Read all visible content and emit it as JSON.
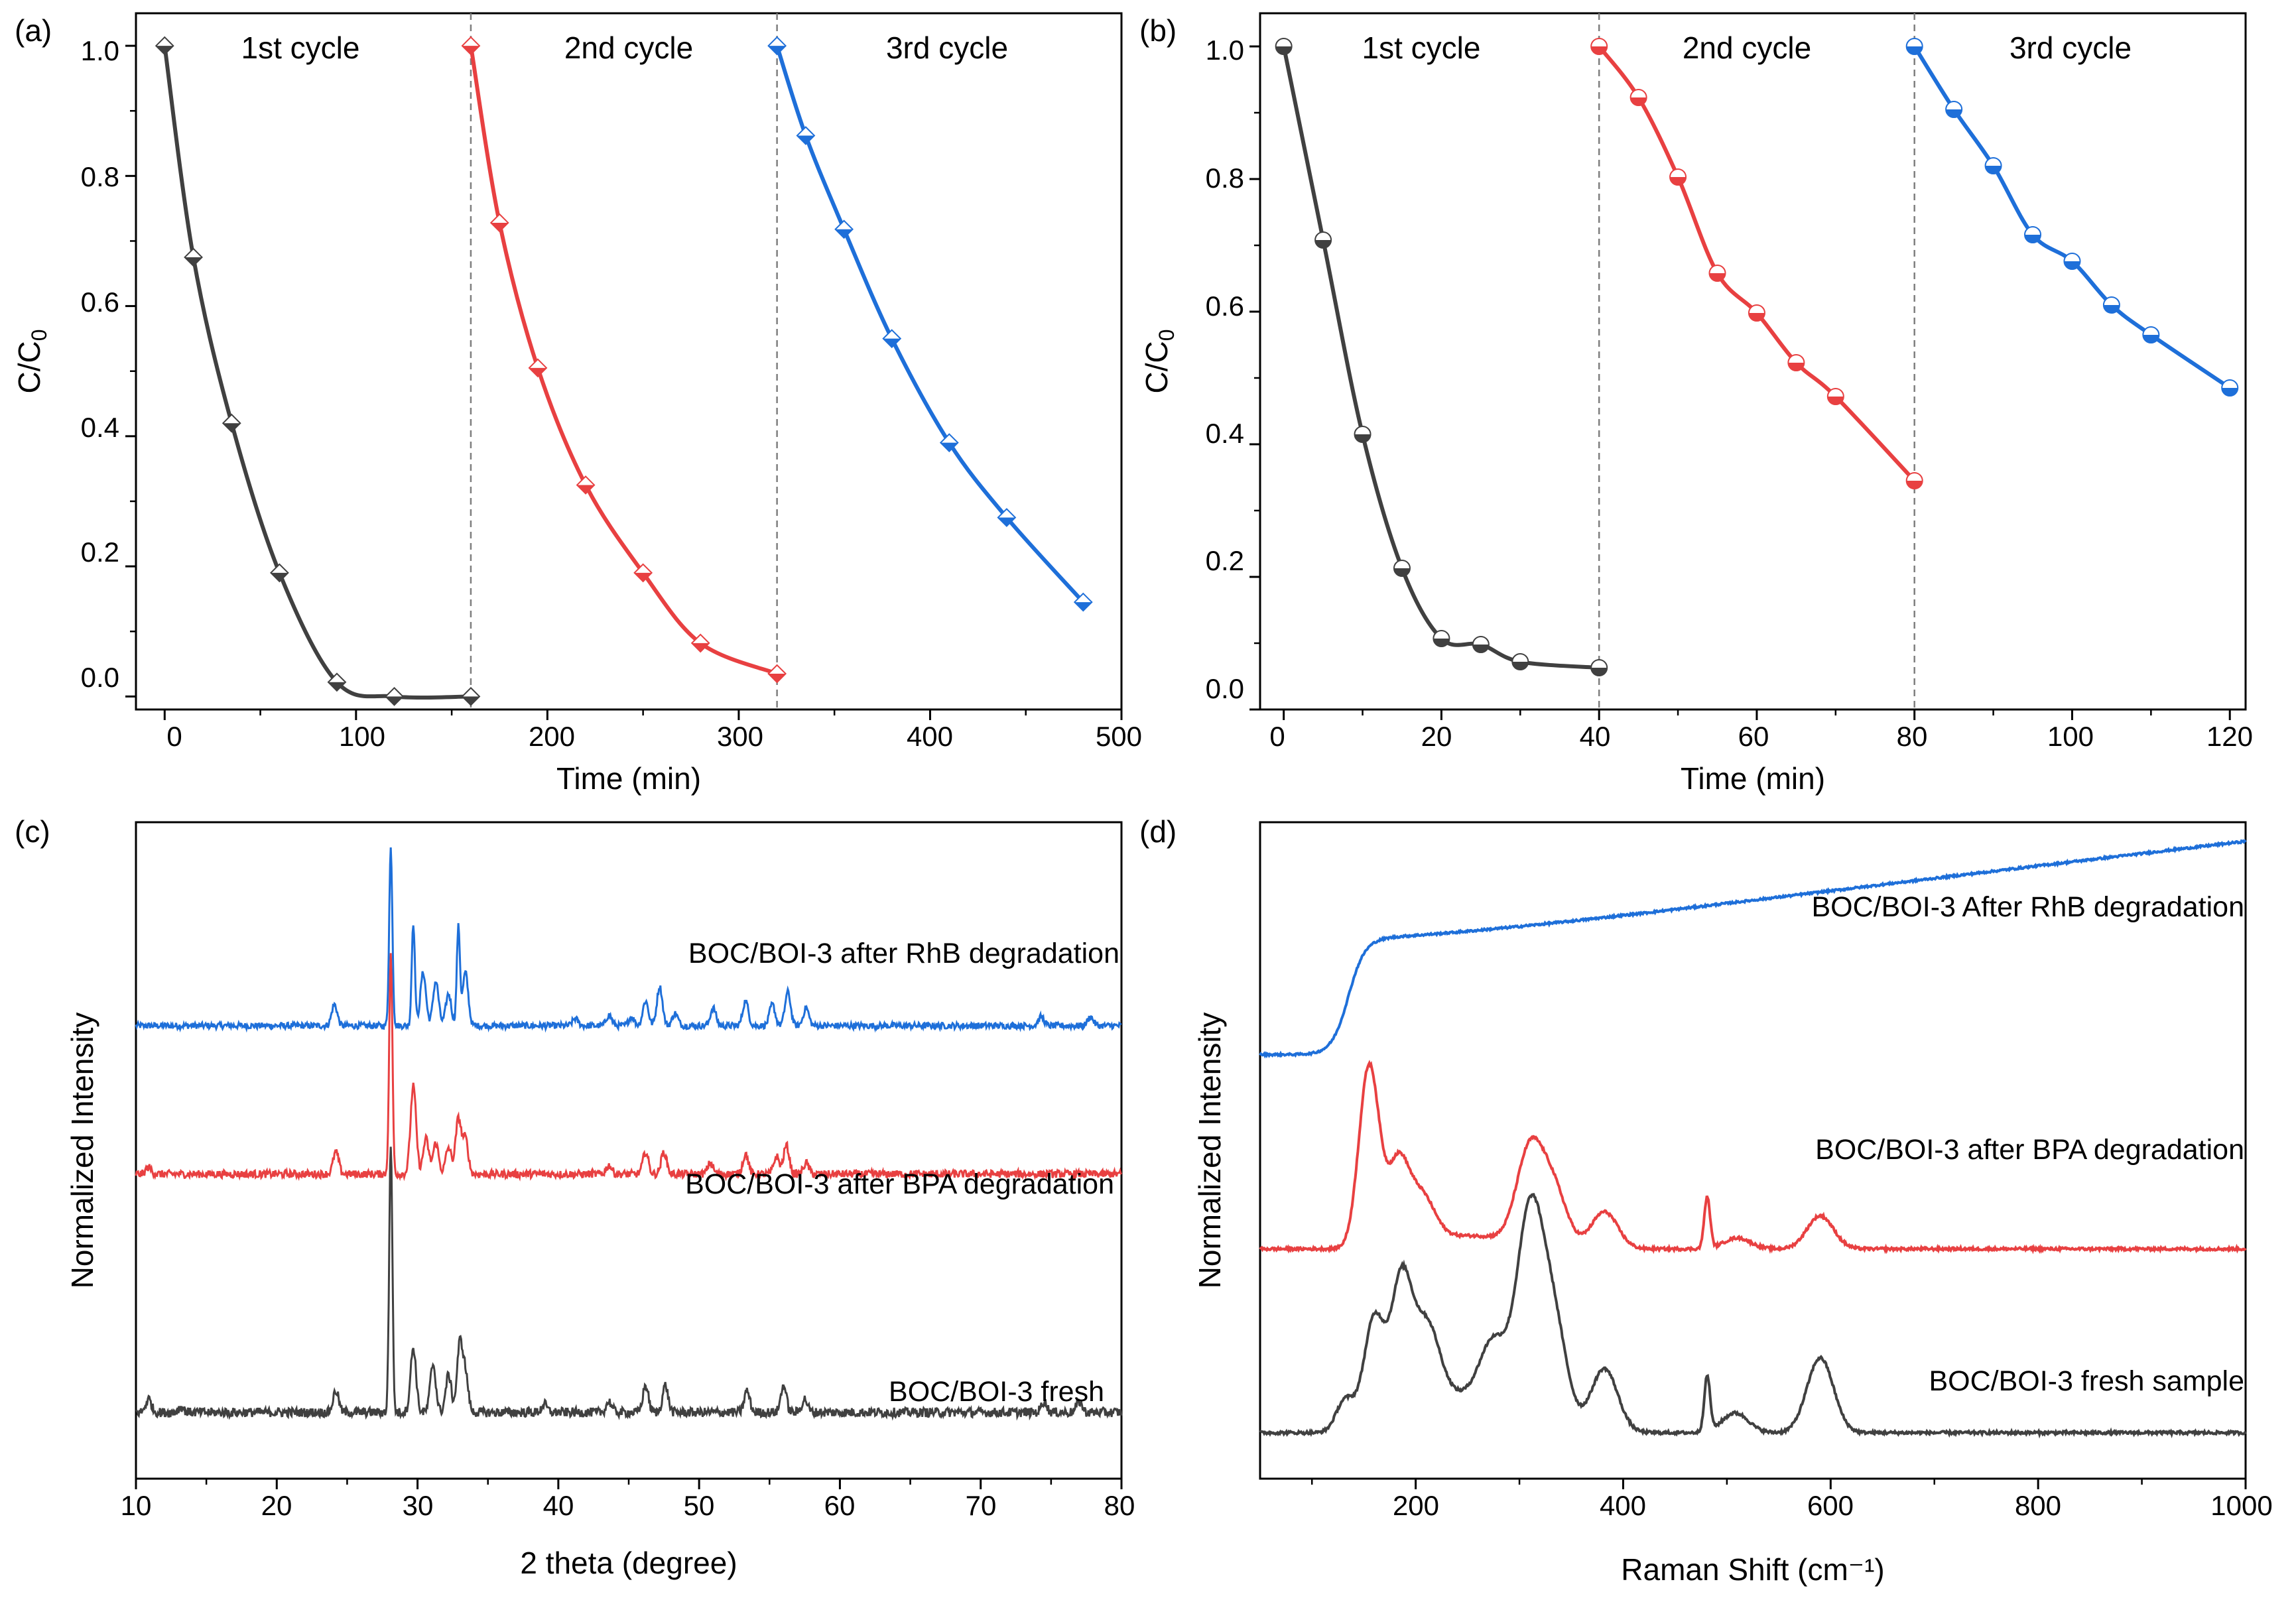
{
  "colors": {
    "cycle1": "#404040",
    "cycle2": "#e84041",
    "cycle3": "#1e6fd9",
    "dash": "#7f7f7f"
  },
  "chart_data": [
    {
      "panel": "(a)",
      "type": "line",
      "xlabel": "Time (min)",
      "ylabel": "C/C0",
      "ylabel_main": "C/C",
      "ylabel_sub": "0",
      "xlim": [
        -15,
        500
      ],
      "ylim": [
        -0.02,
        1.05
      ],
      "xticks": [
        0,
        100,
        200,
        300,
        400,
        500
      ],
      "yticks": [
        0.0,
        0.2,
        0.4,
        0.6,
        0.8,
        1.0
      ],
      "xtick_labels": [
        "0",
        "100",
        "200",
        "300",
        "400",
        "500"
      ],
      "ytick_labels": [
        "0.0",
        "0.2",
        "0.4",
        "0.6",
        "0.8",
        "1.0"
      ],
      "cycle_dividers": [
        160,
        320
      ],
      "annotations": [
        {
          "text": "1st cycle",
          "x": 80,
          "y": 1.0
        },
        {
          "text": "2nd cycle",
          "x": 240,
          "y": 1.0
        },
        {
          "text": "3rd cycle",
          "x": 400,
          "y": 1.0
        }
      ],
      "marker": "diamond",
      "series": [
        {
          "name": "1st cycle",
          "x": [
            0,
            15,
            35,
            60,
            90,
            120,
            160
          ],
          "y": [
            1.0,
            0.675,
            0.42,
            0.19,
            0.022,
            0.0,
            0.0
          ]
        },
        {
          "name": "2nd cycle",
          "x": [
            160,
            175,
            195,
            220,
            250,
            280,
            320
          ],
          "y": [
            1.0,
            0.728,
            0.505,
            0.325,
            0.19,
            0.082,
            0.035
          ]
        },
        {
          "name": "3rd cycle",
          "x": [
            320,
            335,
            355,
            380,
            410,
            440,
            480
          ],
          "y": [
            1.0,
            0.862,
            0.718,
            0.55,
            0.39,
            0.275,
            0.145
          ]
        }
      ]
    },
    {
      "panel": "(b)",
      "type": "line",
      "xlabel": "Time (min)",
      "ylabel": "C/C0",
      "ylabel_main": "C/C",
      "ylabel_sub": "0",
      "xlim": [
        -3,
        122
      ],
      "ylim": [
        0.0,
        1.05
      ],
      "xticks": [
        0,
        20,
        40,
        60,
        80,
        100,
        120
      ],
      "yticks": [
        0.0,
        0.2,
        0.4,
        0.6,
        0.8,
        1.0
      ],
      "xtick_labels": [
        "0",
        "20",
        "40",
        "60",
        "80",
        "100",
        "120"
      ],
      "ytick_labels": [
        "0.0",
        "0.2",
        "0.4",
        "0.6",
        "0.8",
        "1.0"
      ],
      "cycle_dividers": [
        40,
        80
      ],
      "annotations": [
        {
          "text": "1st cycle",
          "x": 20,
          "y": 1.0
        },
        {
          "text": "2nd cycle",
          "x": 60,
          "y": 1.0
        },
        {
          "text": "3rd cycle",
          "x": 100,
          "y": 1.0
        }
      ],
      "marker": "circle",
      "series": [
        {
          "name": "1st cycle",
          "x": [
            0,
            5,
            10,
            15,
            20,
            25,
            30,
            40
          ],
          "y": [
            1.0,
            0.708,
            0.415,
            0.213,
            0.107,
            0.098,
            0.072,
            0.063
          ]
        },
        {
          "name": "2nd cycle",
          "x": [
            40,
            45,
            50,
            55,
            60,
            65,
            70,
            80
          ],
          "y": [
            1.0,
            0.923,
            0.803,
            0.658,
            0.598,
            0.523,
            0.472,
            0.345
          ]
        },
        {
          "name": "3rd cycle",
          "x": [
            80,
            85,
            90,
            95,
            100,
            105,
            110,
            120
          ],
          "y": [
            1.0,
            0.905,
            0.82,
            0.716,
            0.676,
            0.61,
            0.565,
            0.485
          ]
        }
      ]
    },
    {
      "panel": "(c)",
      "type": "line",
      "xlabel": "2 theta (degree)",
      "ylabel": "Normalized Intensity",
      "xlim": [
        10,
        80
      ],
      "ylim": [
        0,
        1
      ],
      "xticks": [
        10,
        20,
        30,
        40,
        50,
        60,
        70,
        80
      ],
      "xtick_labels": [
        "10",
        "20",
        "30",
        "40",
        "50",
        "60",
        "70",
        "80"
      ],
      "series": [
        {
          "name": "BOC/BOI-3 after RhB degradation",
          "color": "#1e6fd9",
          "baseline": 0.69,
          "scale": 0.27,
          "peaks": [
            [
              24.1,
              0.12
            ],
            [
              28.1,
              1.0
            ],
            [
              29.7,
              0.58
            ],
            [
              30.4,
              0.3
            ],
            [
              31.3,
              0.25
            ],
            [
              32.2,
              0.18
            ],
            [
              32.9,
              0.55
            ],
            [
              33.4,
              0.3
            ],
            [
              41.2,
              0.04
            ],
            [
              43.6,
              0.06
            ],
            [
              45.2,
              0.05
            ],
            [
              46.2,
              0.14
            ],
            [
              47.2,
              0.22
            ],
            [
              48.3,
              0.07
            ],
            [
              51.0,
              0.1
            ],
            [
              53.3,
              0.14
            ],
            [
              55.2,
              0.12
            ],
            [
              56.3,
              0.19
            ],
            [
              57.6,
              0.1
            ],
            [
              74.3,
              0.05
            ],
            [
              77.8,
              0.05
            ]
          ]
        },
        {
          "name": "BOC/BOI-3 after BPA degradation",
          "color": "#e84041",
          "baseline": 0.464,
          "scale": 0.335,
          "peaks": [
            [
              10.9,
              0.03
            ],
            [
              24.2,
              0.1
            ],
            [
              28.1,
              1.0
            ],
            [
              29.7,
              0.4
            ],
            [
              30.6,
              0.16
            ],
            [
              31.3,
              0.14
            ],
            [
              32.2,
              0.12
            ],
            [
              32.9,
              0.25
            ],
            [
              33.4,
              0.16
            ],
            [
              43.6,
              0.04
            ],
            [
              46.2,
              0.1
            ],
            [
              47.5,
              0.1
            ],
            [
              50.8,
              0.05
            ],
            [
              53.3,
              0.09
            ],
            [
              55.5,
              0.08
            ],
            [
              56.2,
              0.13
            ],
            [
              57.6,
              0.05
            ]
          ]
        },
        {
          "name": "BOC/BOI-3 fresh",
          "color": "#404040",
          "baseline": 0.101,
          "scale": 0.41,
          "peaks": [
            [
              10.9,
              0.05
            ],
            [
              13.2,
              0.02
            ],
            [
              24.2,
              0.08
            ],
            [
              28.1,
              1.0
            ],
            [
              29.7,
              0.24
            ],
            [
              31.1,
              0.18
            ],
            [
              32.2,
              0.14
            ],
            [
              33.0,
              0.25
            ],
            [
              33.4,
              0.14
            ],
            [
              39.0,
              0.03
            ],
            [
              43.6,
              0.04
            ],
            [
              46.2,
              0.1
            ],
            [
              47.6,
              0.1
            ],
            [
              53.4,
              0.08
            ],
            [
              56.0,
              0.1
            ],
            [
              57.5,
              0.05
            ],
            [
              74.5,
              0.04
            ],
            [
              77.0,
              0.04
            ]
          ]
        }
      ]
    },
    {
      "panel": "(d)",
      "type": "line",
      "xlabel": "Raman Shift (cm⁻¹)",
      "ylabel": "Normalized Intensity",
      "xlim": [
        50,
        1000
      ],
      "ylim": [
        0,
        1
      ],
      "xticks": [
        200,
        400,
        600,
        800,
        1000
      ],
      "xtick_labels": [
        "200",
        "400",
        "600",
        "800",
        "1000"
      ],
      "series": [
        {
          "name": "BOC/BOI-3 After RhB degradation",
          "color": "#1e6fd9",
          "kind": "fluorescence",
          "baseline": 0.646,
          "step_center": 135,
          "step_height": 0.176,
          "slope_end": 0.974
        },
        {
          "name": "BOC/BOI-3 after BPA degradation",
          "color": "#e84041",
          "baseline": 0.35,
          "scale": 0.28,
          "peaks": [
            [
              155,
              1.0
            ],
            [
              183,
              0.42
            ],
            [
              205,
              0.25
            ],
            [
              310,
              0.5
            ],
            [
              333,
              0.3
            ],
            [
              382,
              0.2
            ],
            [
              481,
              0.28
            ],
            [
              510,
              0.06
            ],
            [
              590,
              0.18
            ]
          ]
        },
        {
          "name": "BOC/BOI-3 fresh sample",
          "color": "#404040",
          "baseline": 0.07,
          "scale": 0.3,
          "peaks": [
            [
              130,
              0.2
            ],
            [
              160,
              0.55
            ],
            [
              186,
              0.67
            ],
            [
              210,
              0.42
            ],
            [
              275,
              0.3
            ],
            [
              310,
              1.0
            ],
            [
              333,
              0.5
            ],
            [
              382,
              0.32
            ],
            [
              481,
              0.28
            ],
            [
              508,
              0.1
            ],
            [
              590,
              0.38
            ]
          ]
        }
      ]
    }
  ],
  "labels": {
    "a": {
      "panel": "(a)",
      "xlabel": "Time (min)",
      "ylabel_main": "C/C",
      "ylabel_sub": "0",
      "ann1": "1st cycle",
      "ann2": "2nd cycle",
      "ann3": "3rd cycle",
      "xt": [
        "0",
        "100",
        "200",
        "300",
        "400",
        "500"
      ],
      "yt": [
        "0.0",
        "0.2",
        "0.4",
        "0.6",
        "0.8",
        "1.0"
      ]
    },
    "b": {
      "panel": "(b)",
      "xlabel": "Time (min)",
      "ylabel_main": "C/C",
      "ylabel_sub": "0",
      "ann1": "1st cycle",
      "ann2": "2nd cycle",
      "ann3": "3rd cycle",
      "xt": [
        "0",
        "20",
        "40",
        "60",
        "80",
        "100",
        "120"
      ],
      "yt": [
        "0.0",
        "0.2",
        "0.4",
        "0.6",
        "0.8",
        "1.0"
      ]
    },
    "c": {
      "panel": "(c)",
      "xlabel": "2 theta (degree)",
      "ylabel": "Normalized Intensity",
      "s1": "BOC/BOI-3 after RhB degradation",
      "s2": "BOC/BOI-3 after BPA degradation",
      "s3": "BOC/BOI-3 fresh",
      "xt": [
        "10",
        "20",
        "30",
        "40",
        "50",
        "60",
        "70",
        "80"
      ]
    },
    "d": {
      "panel": "(d)",
      "xlabel": "Raman Shift (cm⁻¹)",
      "ylabel": "Normalized Intensity",
      "s1": "BOC/BOI-3 After RhB degradation",
      "s2": "BOC/BOI-3 after BPA degradation",
      "s3": "BOC/BOI-3 fresh sample",
      "xt": [
        "200",
        "400",
        "600",
        "800",
        "1000"
      ]
    }
  }
}
